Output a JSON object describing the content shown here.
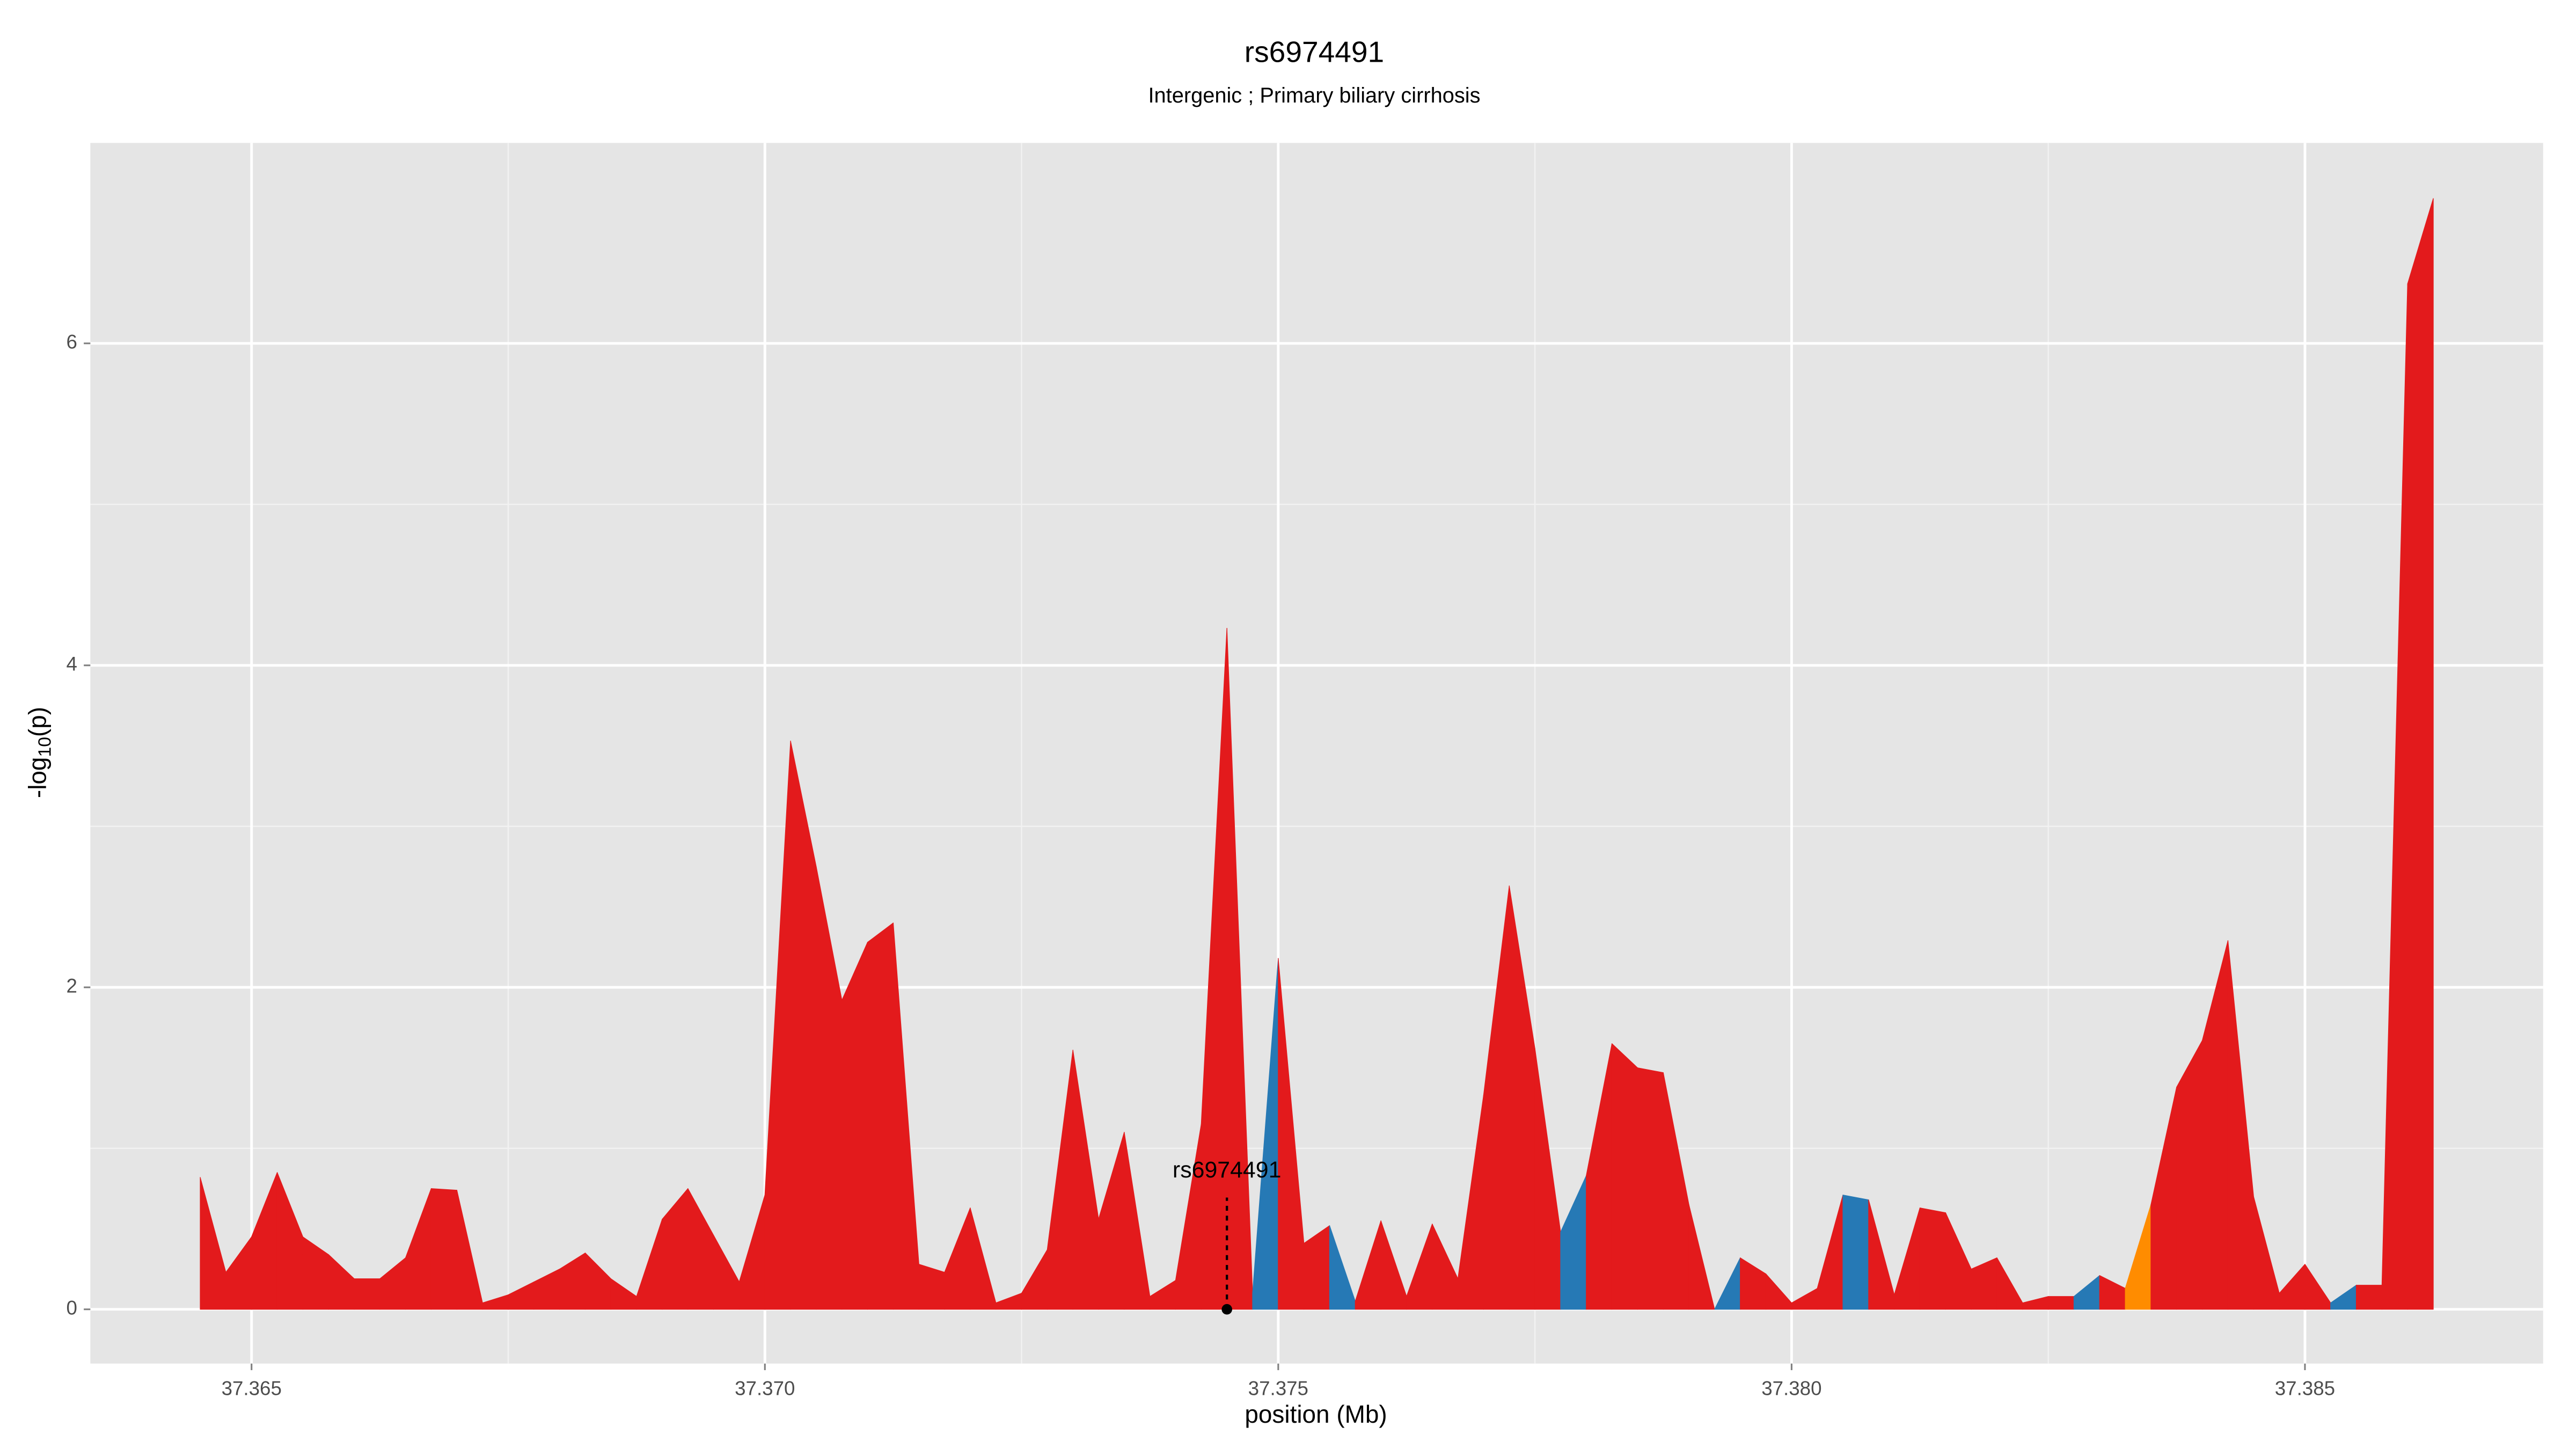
{
  "chart_data": {
    "type": "area",
    "title": "rs6974491",
    "subtitle": "Intergenic ; Primary biliary cirrhosis",
    "xlabel": "position (Mb)",
    "ylabel": [
      "-log",
      "10",
      "(p)"
    ],
    "x": [
      37.3645,
      37.36475,
      37.365,
      37.36525,
      37.3655,
      37.36575,
      37.366,
      37.36625,
      37.3665,
      37.36675,
      37.367,
      37.36725,
      37.3675,
      37.36775,
      37.368,
      37.36825,
      37.3685,
      37.36875,
      37.369,
      37.36925,
      37.3695,
      37.36975,
      37.37,
      37.37025,
      37.3705,
      37.37075,
      37.371,
      37.37125,
      37.3715,
      37.37175,
      37.372,
      37.37225,
      37.3725,
      37.37275,
      37.373,
      37.37325,
      37.3735,
      37.37375,
      37.374,
      37.37425,
      37.3745,
      37.37475,
      37.375,
      37.37525,
      37.3755,
      37.37575,
      37.376,
      37.37625,
      37.3765,
      37.37675,
      37.377,
      37.37725,
      37.3775,
      37.37775,
      37.378,
      37.37825,
      37.3785,
      37.37875,
      37.379,
      37.37925,
      37.3795,
      37.37975,
      37.38,
      37.38025,
      37.3805,
      37.38075,
      37.381,
      37.38125,
      37.3815,
      37.38175,
      37.382,
      37.38225,
      37.3825,
      37.38275,
      37.383,
      37.38325,
      37.3835,
      37.38375,
      37.384,
      37.38425,
      37.3845,
      37.38475,
      37.385,
      37.38525,
      37.3855,
      37.38575,
      37.386,
      37.38625
    ],
    "values": [
      0.82,
      0.23,
      0.45,
      0.85,
      0.45,
      0.34,
      0.19,
      0.19,
      0.32,
      0.75,
      0.74,
      0.04,
      0.09,
      0.17,
      0.25,
      0.35,
      0.19,
      0.08,
      0.56,
      0.75,
      0.46,
      0.17,
      0.71,
      3.53,
      2.75,
      1.92,
      2.28,
      2.4,
      0.28,
      0.23,
      0.63,
      0.04,
      0.1,
      0.37,
      1.61,
      0.56,
      1.1,
      0.08,
      0.18,
      1.15,
      4.23,
      0.1,
      2.18,
      0.41,
      0.52,
      0.05,
      0.55,
      0.08,
      0.53,
      0.19,
      1.33,
      2.63,
      1.62,
      0.48,
      0.83,
      1.65,
      1.5,
      1.47,
      0.65,
      0,
      0.32,
      0.22,
      0.04,
      0.13,
      0.71,
      0.68,
      0.09,
      0.63,
      0.6,
      0.25,
      0.32,
      0.04,
      0.08,
      0.08,
      0.21,
      0.13,
      0.65,
      1.38,
      1.67,
      2.29,
      0.7,
      0.1,
      0.28,
      0.04,
      0.15,
      0.15,
      6.37,
      6.9
    ],
    "segment_colors": [
      "#e31a1c",
      "#e31a1c",
      "#e31a1c",
      "#e31a1c",
      "#e31a1c",
      "#e31a1c",
      "#e31a1c",
      "#e31a1c",
      "#e31a1c",
      "#e31a1c",
      "#e31a1c",
      "#e31a1c",
      "#e31a1c",
      "#e31a1c",
      "#e31a1c",
      "#e31a1c",
      "#e31a1c",
      "#e31a1c",
      "#e31a1c",
      "#e31a1c",
      "#e31a1c",
      "#e31a1c",
      "#e31a1c",
      "#e31a1c",
      "#e31a1c",
      "#e31a1c",
      "#e31a1c",
      "#e31a1c",
      "#e31a1c",
      "#e31a1c",
      "#e31a1c",
      "#e31a1c",
      "#e31a1c",
      "#e31a1c",
      "#e31a1c",
      "#e31a1c",
      "#e31a1c",
      "#e31a1c",
      "#e31a1c",
      "#e31a1c",
      "#e31a1c",
      "#2679b5",
      "#e31a1c",
      "#e31a1c",
      "#2679b5",
      "#e31a1c",
      "#e31a1c",
      "#e31a1c",
      "#e31a1c",
      "#e31a1c",
      "#e31a1c",
      "#e31a1c",
      "#e31a1c",
      "#2679b5",
      "#e31a1c",
      "#e31a1c",
      "#e31a1c",
      "#e31a1c",
      "#e31a1c",
      "#2679b5",
      "#e31a1c",
      "#e31a1c",
      "#e31a1c",
      "#e31a1c",
      "#2679b5",
      "#e31a1c",
      "#e31a1c",
      "#e31a1c",
      "#e31a1c",
      "#e31a1c",
      "#e31a1c",
      "#e31a1c",
      "#e31a1c",
      "#2679b5",
      "#e31a1c",
      "#ff8c00",
      "#e31a1c",
      "#e31a1c",
      "#e31a1c",
      "#e31a1c",
      "#e31a1c",
      "#e31a1c",
      "#e31a1c",
      "#2679b5",
      "#e31a1c",
      "#e31a1c",
      "#e31a1c"
    ],
    "annotation": {
      "text": "rs6974491",
      "x": 37.3745,
      "y": 0
    },
    "xlim": [
      37.36343,
      37.38732
    ],
    "ylim": [
      -0.337,
      7.245
    ],
    "xticks": [
      37.365,
      {
        "value": 37.37,
        "label": "37.370"
      },
      37.375,
      {
        "value": 37.38,
        "label": "37.380"
      },
      37.385
    ],
    "yticks": [
      0,
      2,
      4,
      6
    ],
    "grid": true
  }
}
